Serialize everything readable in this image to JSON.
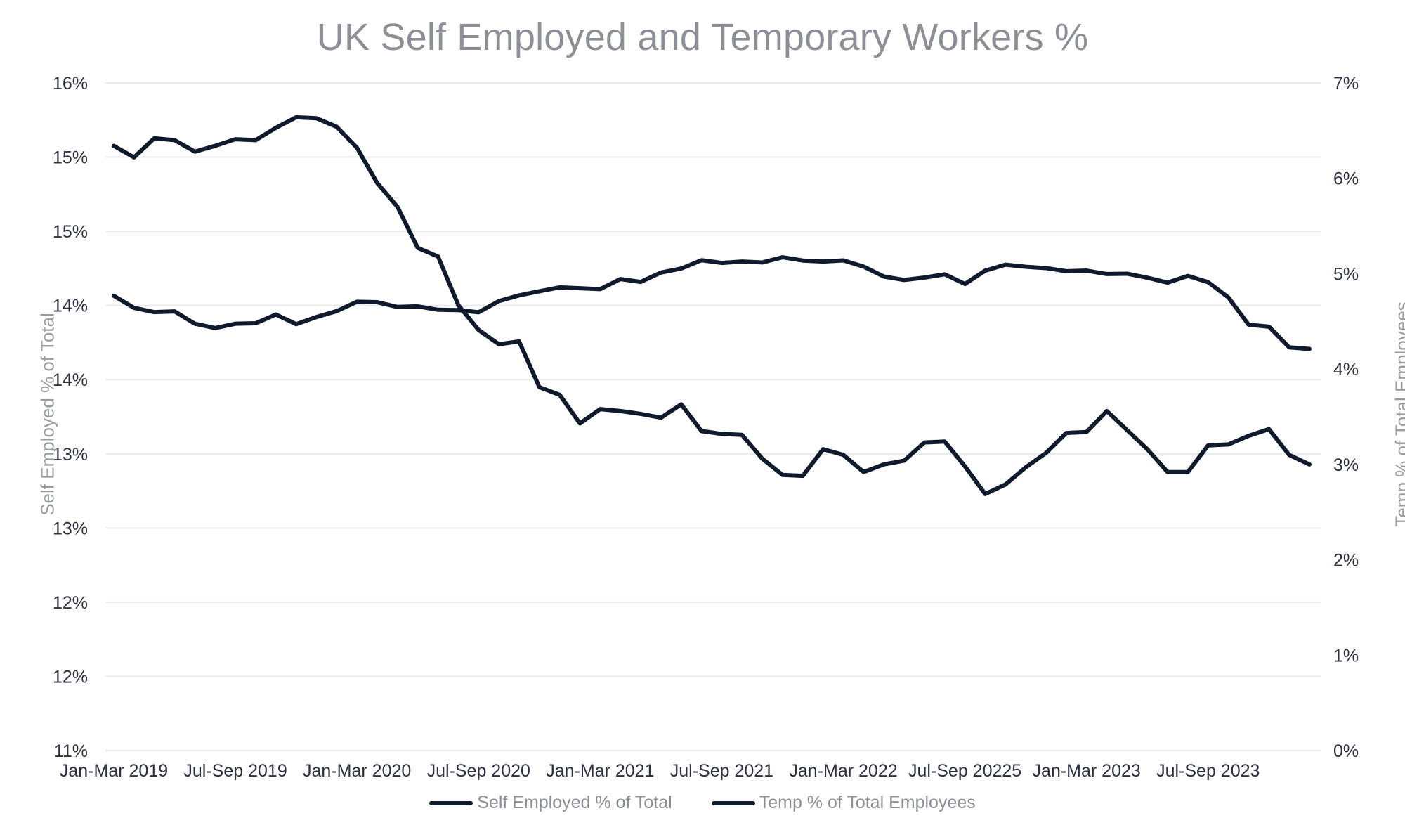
{
  "chart_data": {
    "type": "line",
    "title": "UK Self Employed and Temporary Workers %",
    "ylabel_left": "Self Employed % of Total",
    "ylabel_right": "Temp % of Total Employees",
    "y_left": {
      "ylim": [
        11,
        15.5
      ],
      "tick_labels": [
        "11%",
        "12%",
        "12%",
        "13%",
        "13%",
        "14%",
        "14%",
        "15%",
        "15%",
        "16%"
      ]
    },
    "y_right": {
      "ylim": [
        0,
        7
      ],
      "tick_labels": [
        "0%",
        "1%",
        "2%",
        "3%",
        "4%",
        "5%",
        "6%",
        "7%"
      ]
    },
    "x_tick_labels": [
      "Jan-Mar 2019",
      "Jul-Sep 2019",
      "Jan-Mar 2020",
      "Jul-Sep 2020",
      "Jan-Mar 2021",
      "Jul-Sep 2021",
      "Jan-Mar 2022",
      "Jul-Sep 20225",
      "Jan-Mar 2023",
      "Jul-Sep 2023"
    ],
    "grid": true,
    "legend_position": "bottom",
    "series": [
      {
        "name": "Self Employed % of Total",
        "axis": "left",
        "color": "#0f1b2d",
        "values": [
          14.065,
          13.984,
          13.955,
          13.96,
          13.877,
          13.848,
          13.877,
          13.88,
          13.939,
          13.874,
          13.922,
          13.962,
          14.025,
          14.022,
          13.99,
          13.994,
          13.971,
          13.969,
          13.954,
          14.029,
          14.068,
          14.096,
          14.122,
          14.116,
          14.11,
          14.178,
          14.159,
          14.222,
          14.249,
          14.305,
          14.287,
          14.296,
          14.29,
          14.325,
          14.303,
          14.296,
          14.304,
          14.262,
          14.195,
          14.172,
          14.188,
          14.21,
          14.145,
          14.235,
          14.275,
          14.261,
          14.252,
          14.231,
          14.235,
          14.212,
          14.214,
          14.187,
          14.154,
          14.199,
          14.157,
          14.054,
          13.87,
          13.857,
          13.718,
          13.707
        ]
      },
      {
        "name": "Temp % of Total Employees",
        "axis": "right",
        "color": "#0f1b2d",
        "values": [
          6.34,
          6.22,
          6.42,
          6.4,
          6.28,
          6.34,
          6.41,
          6.4,
          6.53,
          6.64,
          6.63,
          6.54,
          6.32,
          5.95,
          5.7,
          5.27,
          5.18,
          4.67,
          4.41,
          4.26,
          4.29,
          3.81,
          3.73,
          3.43,
          3.58,
          3.56,
          3.53,
          3.49,
          3.63,
          3.35,
          3.32,
          3.31,
          3.06,
          2.89,
          2.88,
          3.16,
          3.1,
          2.92,
          3.0,
          3.04,
          3.23,
          3.24,
          2.98,
          2.69,
          2.79,
          2.97,
          3.12,
          3.33,
          3.34,
          3.56,
          3.36,
          3.16,
          2.92,
          2.92,
          3.2,
          3.21,
          3.3,
          3.37,
          3.1,
          3.0
        ]
      }
    ]
  }
}
